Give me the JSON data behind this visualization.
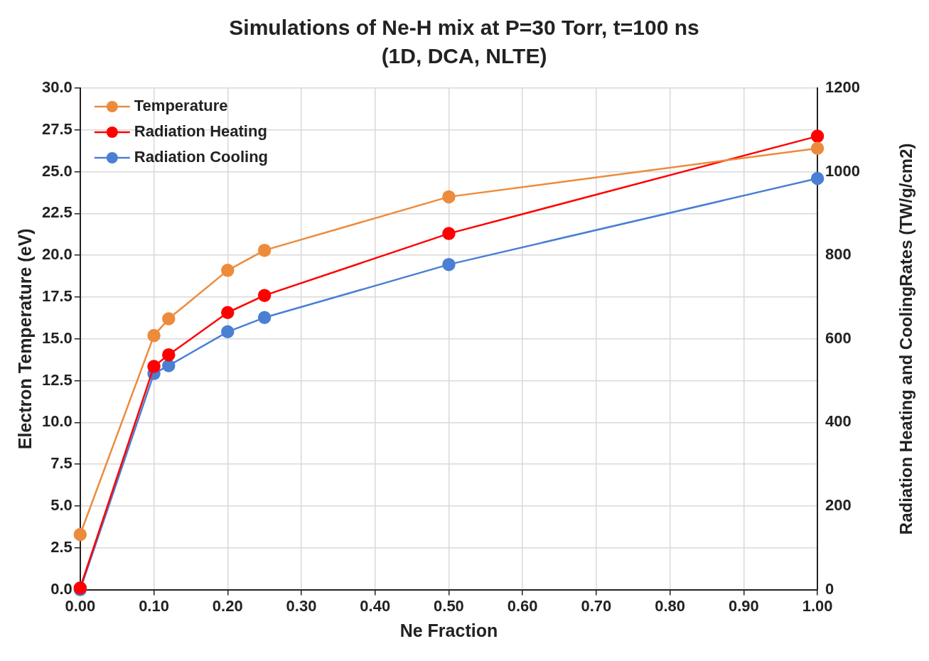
{
  "chart_data": {
    "type": "line",
    "title": "Simulations of Ne-H mix at P=30 Torr, t=100 ns",
    "subtitle": "(1D, DCA, NLTE)",
    "xlabel": "Ne Fraction",
    "ylabel": "Electron Temperature (eV)",
    "y2label": "Radiation Heating and CoolingRates (TW/g/cm2)",
    "x": [
      0,
      0.1,
      0.12,
      0.2,
      0.25,
      0.5,
      1.0
    ],
    "series": [
      {
        "name": "Temperature",
        "color": "#ed8b3c",
        "values": [
          3.3,
          15.2,
          16.2,
          19.1,
          20.3,
          23.5,
          26.4
        ]
      },
      {
        "name": "Radiation Heating",
        "color": "#ff0000",
        "axis": "y2",
        "values": [
          4,
          534,
          562,
          663,
          704,
          852,
          1085
        ]
      },
      {
        "name": "Radiation Cooling",
        "color": "#4a7fd4",
        "axis": "y2",
        "values": [
          0,
          517,
          536,
          617,
          651,
          778,
          984
        ]
      }
    ],
    "xlim": [
      0,
      1.0
    ],
    "xticks": [
      {
        "value": 0,
        "label": "0.00"
      },
      {
        "value": 0.1,
        "label": "0.10"
      },
      {
        "value": 0.2,
        "label": "0.20"
      },
      {
        "value": 0.3,
        "label": "0.30"
      },
      {
        "value": 0.4,
        "label": "0.40"
      },
      {
        "value": 0.5,
        "label": "0.50"
      },
      {
        "value": 0.6,
        "label": "0.60"
      },
      {
        "value": 0.7,
        "label": "0.70"
      },
      {
        "value": 0.8,
        "label": "0.80"
      },
      {
        "value": 0.9,
        "label": "0.90"
      },
      {
        "value": 1.0,
        "label": "1.00"
      }
    ],
    "ylim": [
      0,
      30
    ],
    "yticks": [
      {
        "value": 0,
        "label": "0.0"
      },
      {
        "value": 2.5,
        "label": "2.5"
      },
      {
        "value": 5,
        "label": "5.0"
      },
      {
        "value": 7.5,
        "label": "7.5"
      },
      {
        "value": 10,
        "label": "10.0"
      },
      {
        "value": 12.5,
        "label": "12.5"
      },
      {
        "value": 15,
        "label": "15.0"
      },
      {
        "value": 17.5,
        "label": "17.5"
      },
      {
        "value": 20,
        "label": "20.0"
      },
      {
        "value": 22.5,
        "label": "22.5"
      },
      {
        "value": 25,
        "label": "25.0"
      },
      {
        "value": 27.5,
        "label": "27.5"
      },
      {
        "value": 30,
        "label": "30.0"
      }
    ],
    "y2lim": [
      0,
      1200
    ],
    "y2ticks": [
      0,
      200,
      400,
      600,
      800,
      1000,
      1200
    ],
    "grid": true,
    "legend": "top left",
    "marker": "circle",
    "line_style": "solid"
  }
}
